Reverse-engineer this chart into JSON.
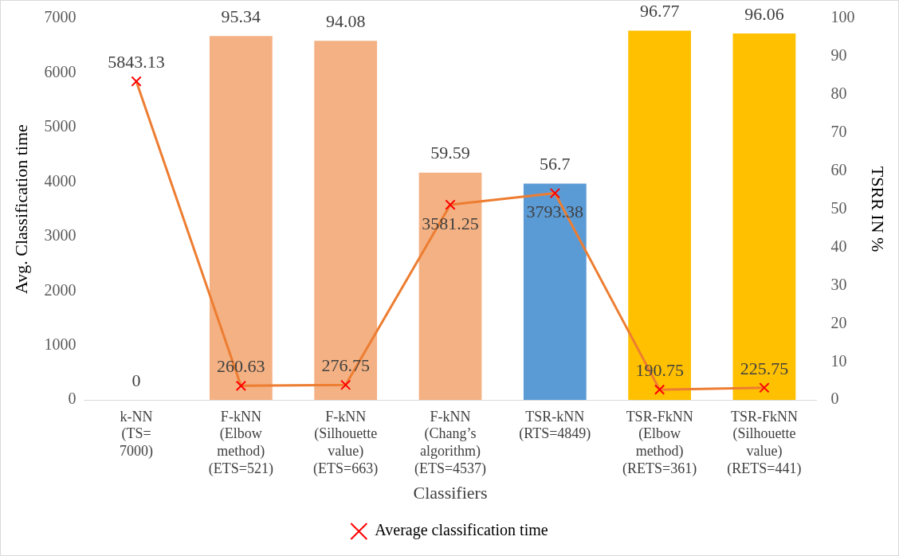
{
  "chart_data": {
    "type": "bar",
    "xlabel": "Classifiers",
    "ylabel": "Avg. Classification time",
    "y2label": "TSRR IN %",
    "categories": [
      "k-NN\n(TS=\n7000)",
      "F-kNN\n(Elbow\nmethod)\n(ETS=521)",
      "F-kNN\n(Silhouette\nvalue)\n(ETS=663)",
      "F-kNN\n(Chang’s\nalgorithm)\n(ETS=4537)",
      "TSR-kNN\n(RTS=4849)",
      "TSR-FkNN\n(Elbow\nmethod)\n(RETS=361)",
      "TSR-FkNN\n(Silhouette\nvalue)\n(RETS=441)"
    ],
    "series": [
      {
        "axis": "y2",
        "colors": [
          "#f4b183",
          "#f4b183",
          "#f4b183",
          "#f4b183",
          "#5b9bd5",
          "#ffc000",
          "#ffc000"
        ],
        "values": [
          0,
          95.34,
          94.08,
          59.59,
          56.7,
          96.77,
          96.06
        ]
      },
      {
        "type": "line",
        "name": "Average classification time",
        "color": "#ed7d31",
        "marker": "cross",
        "values": [
          5843.13,
          260.63,
          276.75,
          3581.25,
          3793.38,
          190.75,
          225.75
        ]
      }
    ],
    "ylim": [
      0,
      7000
    ],
    "yticks": [
      0,
      1000,
      2000,
      3000,
      4000,
      5000,
      6000,
      7000
    ],
    "y2lim": [
      0,
      100
    ],
    "y2ticks": [
      0,
      10,
      20,
      30,
      40,
      50,
      60,
      70,
      80,
      90,
      100
    ],
    "grid": false,
    "legend": "bottom",
    "data_labels": true
  }
}
